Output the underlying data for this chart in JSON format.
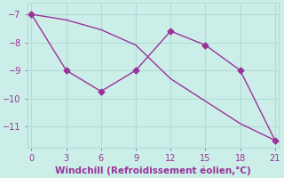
{
  "line1_x": [
    0,
    3,
    6,
    9,
    12,
    15,
    18,
    21
  ],
  "line1_y": [
    -7.0,
    -9.0,
    -9.75,
    -9.0,
    -7.6,
    -8.1,
    -9.0,
    -11.5
  ],
  "line2_x": [
    0,
    3,
    6,
    9,
    12,
    15,
    18,
    21
  ],
  "line2_y": [
    -7.0,
    -7.2,
    -7.55,
    -8.1,
    -9.3,
    -10.1,
    -10.9,
    -11.5
  ],
  "line_color": "#993399",
  "marker_style": "D",
  "marker_size": 3.5,
  "bg_color": "#cceee8",
  "grid_color": "#b0ddd8",
  "xlabel": "Windchill (Refroidissement éolien,°C)",
  "xlabel_color": "#993399",
  "xlim": [
    -0.3,
    21.3
  ],
  "ylim": [
    -11.75,
    -6.6
  ],
  "xticks": [
    0,
    3,
    6,
    9,
    12,
    15,
    18,
    21
  ],
  "yticks": [
    -7,
    -8,
    -9,
    -10,
    -11
  ],
  "tick_color": "#993399",
  "label_fontsize": 7.5
}
